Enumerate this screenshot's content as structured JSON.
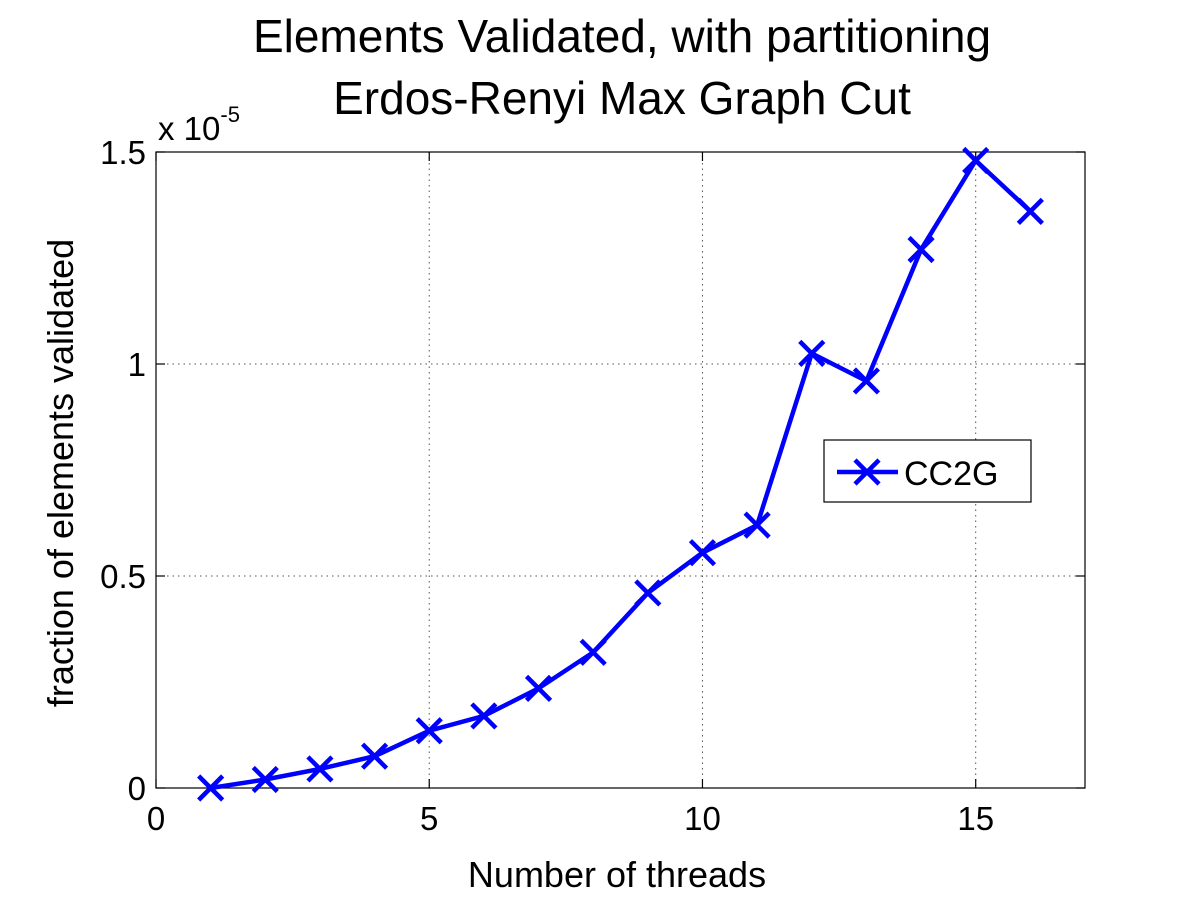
{
  "chart_data": {
    "type": "line",
    "title": "Elements Validated, with partitioning",
    "subtitle": "Erdos-Renyi Max Graph Cut",
    "xlabel": "Number of threads",
    "ylabel": "fraction of elements validated",
    "y_multiplier_base": "x 10",
    "y_multiplier_exponent": "-5",
    "xlim": [
      0,
      17
    ],
    "ylim": [
      0,
      1.5
    ],
    "x_ticks": [
      0,
      5,
      10,
      15
    ],
    "x_tick_labels": [
      "0",
      "5",
      "10",
      "15"
    ],
    "y_ticks": [
      0,
      0.5,
      1,
      1.5
    ],
    "y_tick_labels": [
      "0",
      "0.5",
      "1",
      "1.5"
    ],
    "grid": true,
    "legend_position": "right-middle",
    "series": [
      {
        "name": "CC2G",
        "color": "#0000ff",
        "marker": "x",
        "x": [
          1,
          2,
          3,
          4,
          5,
          6,
          7,
          8,
          9,
          10,
          11,
          12,
          13,
          14,
          15,
          16
        ],
        "y": [
          0.0,
          0.02,
          0.045,
          0.075,
          0.135,
          0.17,
          0.235,
          0.32,
          0.46,
          0.555,
          0.62,
          1.025,
          0.96,
          1.27,
          1.48,
          1.36
        ]
      }
    ]
  }
}
